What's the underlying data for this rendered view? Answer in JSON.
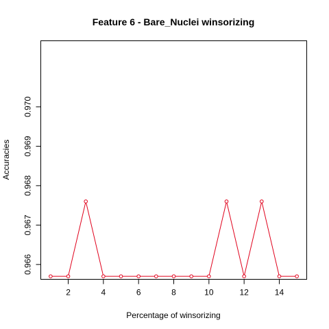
{
  "chart_data": {
    "type": "line",
    "title": "Feature 6 - Bare_Nuclei winsorizing",
    "xlabel": "Percentage of winsorizing",
    "ylabel": "Accuracies",
    "x": [
      1,
      2,
      3,
      4,
      5,
      6,
      7,
      8,
      9,
      10,
      11,
      12,
      13,
      14,
      15
    ],
    "series": [
      {
        "values": [
          0.9657,
          0.9657,
          0.9676,
          0.9657,
          0.9657,
          0.9657,
          0.9657,
          0.9657,
          0.9657,
          0.9657,
          0.9676,
          0.9657,
          0.9676,
          0.9657,
          0.9657
        ],
        "color": "#e0001b",
        "marker": "open-circle"
      }
    ],
    "xticks": [
      2,
      4,
      6,
      8,
      10,
      12,
      14
    ],
    "xtick_labels": [
      "2",
      "4",
      "6",
      "8",
      "10",
      "12",
      "14"
    ],
    "yticks": [
      0.966,
      0.967,
      0.968,
      0.969,
      0.97
    ],
    "ytick_labels": [
      "0.966",
      "0.967",
      "0.968",
      "0.969",
      "0.970"
    ],
    "xlim": [
      0.44,
      15.56
    ],
    "ylim": [
      0.965624,
      0.971676
    ],
    "grid": false,
    "legend": "none"
  }
}
